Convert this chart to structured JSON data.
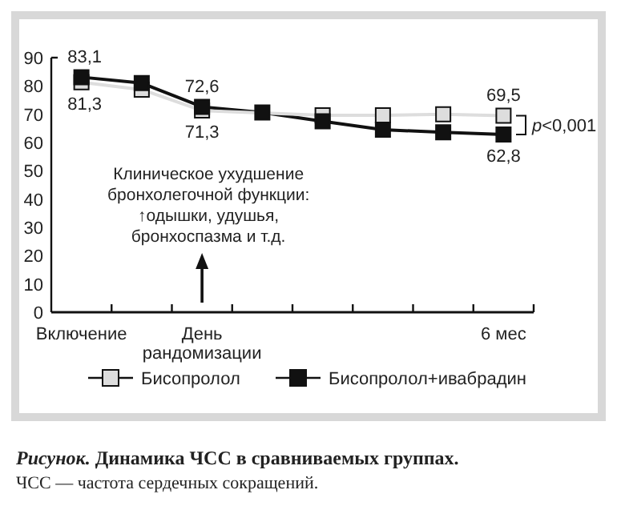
{
  "chart_data": {
    "type": "line",
    "title": "Рисунок. Динамика ЧСС в сравниваемых группах.",
    "categories": [
      "Включение",
      null,
      "День\nрандомизации",
      null,
      null,
      null,
      null,
      "6 мес"
    ],
    "series": [
      {
        "name": "Бисопролол+ивабрадин",
        "color": "#111111",
        "values": [
          83.1,
          81,
          72.6,
          70.6,
          67.5,
          64.5,
          63.6,
          62.8
        ],
        "value_labels": [
          "83,1",
          null,
          "72,6",
          null,
          null,
          null,
          null,
          "62,8"
        ]
      },
      {
        "name": "Бисопролол",
        "color": "#dddddd",
        "values": [
          81.3,
          78.7,
          71.3,
          null,
          69.6,
          69.6,
          70,
          69.5
        ],
        "value_labels": [
          "81,3",
          null,
          "71,3",
          null,
          null,
          null,
          null,
          "69,5"
        ]
      }
    ],
    "ylim": [
      0,
      90
    ],
    "yticks": [
      0,
      10,
      20,
      30,
      40,
      50,
      60,
      70,
      80,
      90
    ],
    "marker": "square",
    "legend": "bottom",
    "grid": false,
    "annotations": [
      "Клиническое ухудшение\nбронхолегочной функции:\n↑одышки, удушья,\nбронхоспазма и т.д.",
      "p<0,001",
      "ЧСС — частота сердечных сокращений."
    ]
  }
}
